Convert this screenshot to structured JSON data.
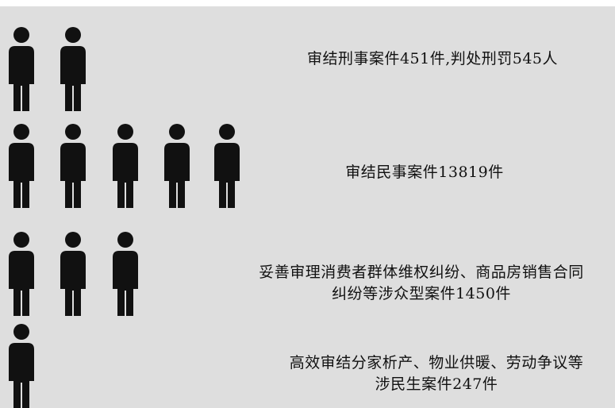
{
  "chart_data": {
    "type": "pictogram",
    "title": "",
    "icon": "person-icon",
    "icon_color": "#111111",
    "background": "#dedede",
    "rows": [
      {
        "icons": 2,
        "text": "审结刑事案件451件,判处刑罚545人"
      },
      {
        "icons": 5,
        "text": "审结民事案件13819件"
      },
      {
        "icons": 3,
        "text_line1": "妥善审理消费者群体维权纠纷、商品房销售合同",
        "text_line2": "纠纷等涉众型案件1450件"
      },
      {
        "icons": 1,
        "text_line1": "高效审结分家析产、物业供暖、劳动争议等",
        "text_line2": "涉民生案件247件"
      }
    ]
  }
}
